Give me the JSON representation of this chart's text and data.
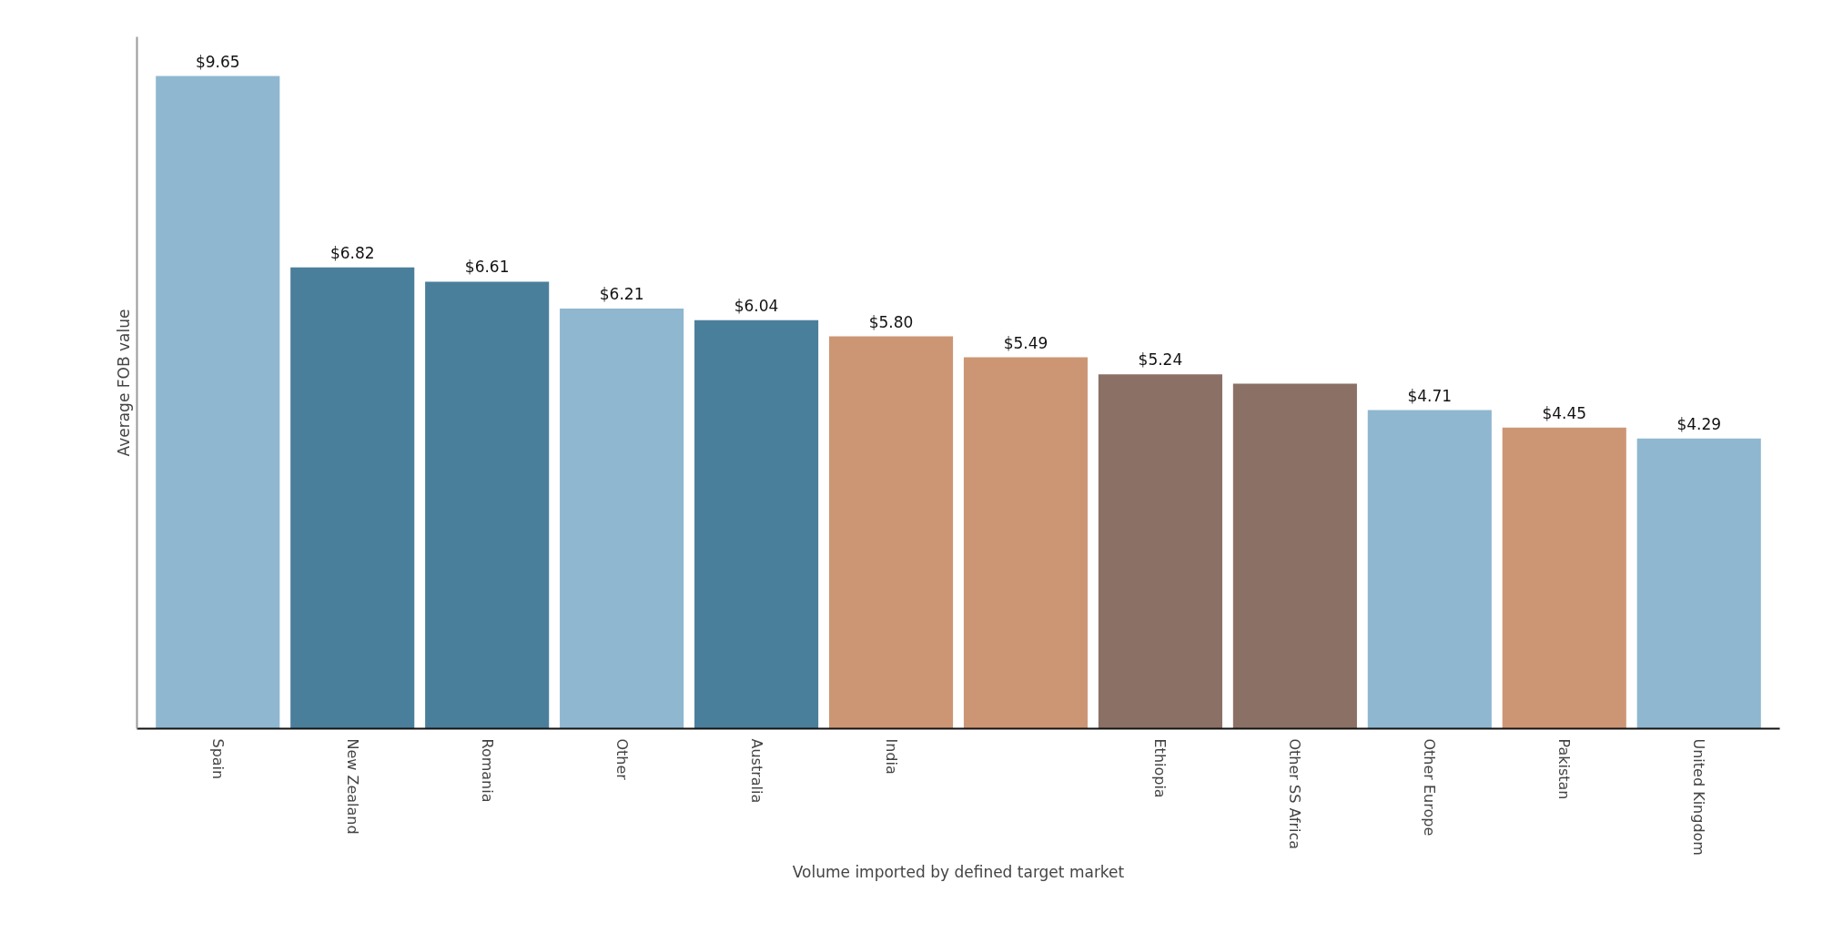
{
  "chart_data": {
    "type": "bar",
    "xlabel": "Volume imported by defined target market",
    "ylabel": "Average FOB value",
    "categories": [
      "Spain",
      "New Zealand",
      "Romania",
      "Other",
      "Australia",
      "India",
      null,
      "Ethiopia",
      "Other SS Africa",
      "Other Europe",
      "Pakistan",
      "United Kingdom"
    ],
    "values": [
      9.65,
      6.82,
      6.61,
      6.21,
      6.04,
      5.8,
      5.49,
      5.24,
      5.1,
      4.71,
      4.45,
      4.29
    ],
    "value_labels": [
      "$9.65",
      "$6.82",
      "$6.61",
      "$6.21",
      "$6.04",
      "$5.80",
      "$5.49",
      "$5.24",
      null,
      "$4.71",
      "$4.45",
      "$4.29"
    ],
    "colors": [
      "#8fb7cf",
      "#4a7f9b",
      "#4a7f9b",
      "#8fb7cf",
      "#4a7f9b",
      "#cc9675",
      "#cc9675",
      "#8b7065",
      "#8b7065",
      "#8fb7cf",
      "#cc9675",
      "#8fb7cf"
    ],
    "tick_labels": "x",
    "grid": false
  }
}
